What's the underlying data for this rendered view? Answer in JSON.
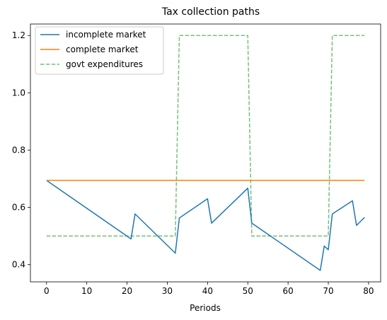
{
  "chart_data": {
    "type": "line",
    "title": "Tax collection paths",
    "xlabel": "Periods",
    "ylabel": "",
    "xlim": [
      -4,
      83
    ],
    "ylim": [
      0.34,
      1.24
    ],
    "xticks": [
      0,
      10,
      20,
      30,
      40,
      50,
      60,
      70,
      80
    ],
    "yticks": [
      0.4,
      0.6,
      0.8,
      1.0,
      1.2
    ],
    "ytick_labels": [
      "0.4",
      "0.6",
      "0.8",
      "1.0",
      "1.2"
    ],
    "legend_position": "top-left",
    "grid": false,
    "series": [
      {
        "name": "incomplete market",
        "color": "#1f77b4",
        "style": "solid",
        "x": [
          0,
          21,
          22,
          32,
          33,
          40,
          41,
          50,
          51,
          68,
          69,
          70,
          71,
          76,
          77,
          79
        ],
        "y": [
          0.694,
          0.49,
          0.577,
          0.44,
          0.563,
          0.63,
          0.545,
          0.667,
          0.545,
          0.38,
          0.465,
          0.452,
          0.577,
          0.623,
          0.537,
          0.565
        ]
      },
      {
        "name": "complete market",
        "color": "#ff7f0e",
        "style": "solid",
        "x": [
          0,
          79
        ],
        "y": [
          0.694,
          0.694
        ]
      },
      {
        "name": "govt expenditures",
        "color": "#2ca02c",
        "style": "dashed",
        "x": [
          0,
          32,
          33,
          50,
          51,
          70,
          71,
          79
        ],
        "y": [
          0.5,
          0.5,
          1.2,
          1.2,
          0.5,
          0.5,
          1.2,
          1.2
        ]
      }
    ]
  }
}
